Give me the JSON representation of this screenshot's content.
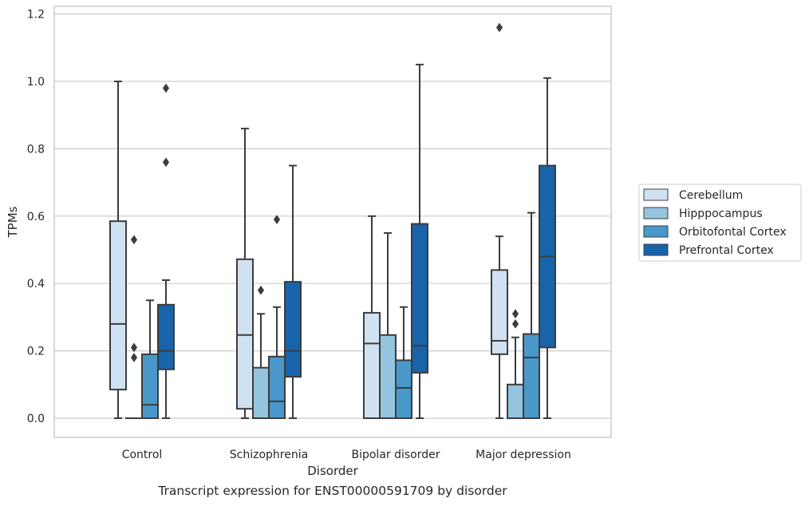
{
  "caption": "Transcript expression for ENST00000591709 by disorder",
  "chart_data": {
    "type": "box",
    "title": "",
    "xlabel": "Disorder",
    "ylabel": "TPMs",
    "ylim": [
      -0.055,
      1.22
    ],
    "yticks": [
      0.0,
      0.2,
      0.4,
      0.6,
      0.8,
      1.0,
      1.2
    ],
    "ytick_labels": [
      "0.0",
      "0.2",
      "0.4",
      "0.6",
      "0.8",
      "1.0",
      "1.2"
    ],
    "grid": "horizontal",
    "legend_position": "right",
    "categories": [
      "Control",
      "Schizophrenia",
      "Bipolar disorder",
      "Major depression"
    ],
    "series": [
      {
        "name": "Cerebellum",
        "color": "#d0e1f2",
        "boxes": [
          {
            "whisker_low": 0.0,
            "q1": 0.085,
            "median": 0.28,
            "q3": 0.585,
            "whisker_high": 1.0,
            "outliers": []
          },
          {
            "whisker_low": 0.0,
            "q1": 0.028,
            "median": 0.247,
            "q3": 0.472,
            "whisker_high": 0.86,
            "outliers": []
          },
          {
            "whisker_low": 0.0,
            "q1": 0.0,
            "median": 0.222,
            "q3": 0.313,
            "whisker_high": 0.6,
            "outliers": []
          },
          {
            "whisker_low": 0.0,
            "q1": 0.19,
            "median": 0.23,
            "q3": 0.44,
            "whisker_high": 0.54,
            "outliers": [
              1.16
            ]
          }
        ]
      },
      {
        "name": "Hipppocampus",
        "color": "#94c4df",
        "boxes": [
          {
            "whisker_low": 0.0,
            "q1": 0.0,
            "median": 0.0,
            "q3": 0.0,
            "whisker_high": 0.0,
            "outliers": [
              0.18,
              0.21,
              0.53
            ]
          },
          {
            "whisker_low": 0.0,
            "q1": 0.0,
            "median": 0.0,
            "q3": 0.15,
            "whisker_high": 0.31,
            "outliers": [
              0.38
            ]
          },
          {
            "whisker_low": 0.0,
            "q1": 0.0,
            "median": 0.0,
            "q3": 0.247,
            "whisker_high": 0.55,
            "outliers": []
          },
          {
            "whisker_low": 0.0,
            "q1": 0.0,
            "median": 0.0,
            "q3": 0.1,
            "whisker_high": 0.24,
            "outliers": [
              0.28,
              0.31
            ]
          }
        ]
      },
      {
        "name": "Orbitofontal Cortex",
        "color": "#4a98c9",
        "boxes": [
          {
            "whisker_low": 0.0,
            "q1": 0.0,
            "median": 0.04,
            "q3": 0.19,
            "whisker_high": 0.35,
            "outliers": []
          },
          {
            "whisker_low": 0.0,
            "q1": 0.0,
            "median": 0.05,
            "q3": 0.183,
            "whisker_high": 0.33,
            "outliers": [
              0.59
            ]
          },
          {
            "whisker_low": 0.0,
            "q1": 0.0,
            "median": 0.09,
            "q3": 0.172,
            "whisker_high": 0.33,
            "outliers": []
          },
          {
            "whisker_low": 0.0,
            "q1": 0.0,
            "median": 0.18,
            "q3": 0.25,
            "whisker_high": 0.61,
            "outliers": []
          }
        ]
      },
      {
        "name": "Prefrontal Cortex",
        "color": "#1764ab",
        "boxes": [
          {
            "whisker_low": 0.0,
            "q1": 0.145,
            "median": 0.2,
            "q3": 0.337,
            "whisker_high": 0.41,
            "outliers": [
              0.76,
              0.98
            ]
          },
          {
            "whisker_low": 0.0,
            "q1": 0.123,
            "median": 0.2,
            "q3": 0.405,
            "whisker_high": 0.75,
            "outliers": []
          },
          {
            "whisker_low": 0.0,
            "q1": 0.135,
            "median": 0.215,
            "q3": 0.577,
            "whisker_high": 1.05,
            "outliers": []
          },
          {
            "whisker_low": 0.0,
            "q1": 0.21,
            "median": 0.48,
            "q3": 0.75,
            "whisker_high": 1.01,
            "outliers": []
          }
        ]
      }
    ]
  }
}
